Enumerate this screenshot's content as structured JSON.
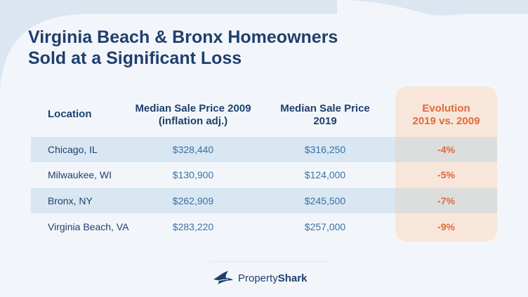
{
  "title": {
    "line1": "Virginia Beach & Bronx Homeowners",
    "line2": "Sold at a Significant Loss"
  },
  "colors": {
    "accent": "#e06a3a",
    "navy": "#1f3f6d",
    "value_blue": "#3c6fa6",
    "row_shade": "#dbe9f2",
    "evolution_bg": "#f8e6da"
  },
  "chart_data": {
    "type": "table",
    "columns": [
      {
        "line1": "Location",
        "line2": ""
      },
      {
        "line1": "Median Sale Price 2009",
        "line2": "(inflation adj.)"
      },
      {
        "line1": "Median Sale Price",
        "line2": "2019"
      },
      {
        "line1": "Evolution",
        "line2": "2019 vs. 2009"
      }
    ],
    "rows": [
      {
        "location": "Chicago, IL",
        "price_2009": "$328,440",
        "price_2019": "$316,250",
        "evolution": "-4%"
      },
      {
        "location": "Milwaukee, WI",
        "price_2009": "$130,900",
        "price_2019": "$124,000",
        "evolution": "-5%"
      },
      {
        "location": "Bronx, NY",
        "price_2009": "$262,909",
        "price_2019": "$245,500",
        "evolution": "-7%"
      },
      {
        "location": "Virginia Beach, VA",
        "price_2009": "$283,220",
        "price_2019": "$257,000",
        "evolution": "-9%"
      }
    ]
  },
  "logo": {
    "icon": "shark-fin-icon",
    "text_plain": "Property",
    "text_bold": "Shark"
  }
}
